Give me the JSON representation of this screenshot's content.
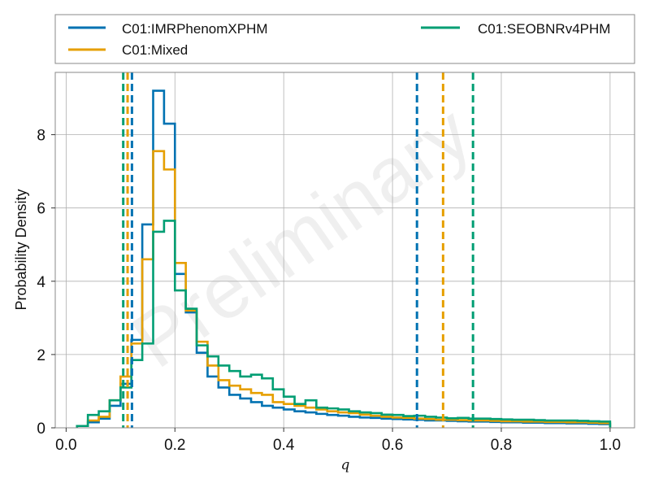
{
  "chart_data": {
    "type": "line",
    "title": "",
    "xlabel": "q",
    "ylabel": "Probability Density",
    "xlim": [
      -0.02,
      1.045
    ],
    "ylim": [
      0,
      9.7
    ],
    "xticks": [
      0.0,
      0.2,
      0.4,
      0.6,
      0.8,
      1.0
    ],
    "xtick_labels": [
      "0.0",
      "0.2",
      "0.4",
      "0.6",
      "0.8",
      "1.0"
    ],
    "yticks": [
      0,
      2,
      4,
      6,
      8
    ],
    "ytick_labels": [
      "0",
      "2",
      "4",
      "6",
      "8"
    ],
    "grid": true,
    "legend_position": "top, above plot",
    "watermark": "Preliminary",
    "bin_edges": [
      0.02,
      0.04,
      0.06,
      0.08,
      0.1,
      0.12,
      0.14,
      0.16,
      0.18,
      0.2,
      0.22,
      0.24,
      0.26,
      0.28,
      0.3,
      0.32,
      0.34,
      0.36,
      0.38,
      0.4,
      0.42,
      0.44,
      0.46,
      0.48,
      0.5,
      0.52,
      0.54,
      0.56,
      0.58,
      0.6,
      0.62,
      0.64,
      0.66,
      0.68,
      0.7,
      0.72,
      0.74,
      0.76,
      0.78,
      0.8,
      0.82,
      0.84,
      0.86,
      0.88,
      0.9,
      0.92,
      0.94,
      0.96,
      0.98,
      1.0
    ],
    "series": [
      {
        "name": "C01:IMRPhenomXPHM",
        "color": "#0072b2",
        "values": [
          0.05,
          0.15,
          0.25,
          0.6,
          1.2,
          2.4,
          5.55,
          9.2,
          8.3,
          4.2,
          3.15,
          2.05,
          1.4,
          1.1,
          0.9,
          0.8,
          0.7,
          0.6,
          0.55,
          0.5,
          0.45,
          0.42,
          0.38,
          0.35,
          0.33,
          0.3,
          0.28,
          0.27,
          0.25,
          0.24,
          0.23,
          0.22,
          0.2,
          0.2,
          0.19,
          0.18,
          0.17,
          0.17,
          0.16,
          0.15,
          0.15,
          0.14,
          0.14,
          0.13,
          0.13,
          0.12,
          0.12,
          0.11,
          0.1
        ],
        "vlines": [
          0.121,
          0.645
        ]
      },
      {
        "name": "C01:Mixed",
        "color": "#e69f00",
        "values": [
          0.05,
          0.2,
          0.3,
          0.75,
          1.4,
          2.3,
          4.6,
          7.55,
          7.05,
          4.5,
          3.2,
          2.35,
          1.7,
          1.3,
          1.15,
          1.05,
          0.95,
          0.9,
          0.7,
          0.65,
          0.6,
          0.55,
          0.5,
          0.45,
          0.42,
          0.4,
          0.36,
          0.33,
          0.3,
          0.28,
          0.27,
          0.25,
          0.24,
          0.22,
          0.22,
          0.21,
          0.2,
          0.2,
          0.19,
          0.18,
          0.18,
          0.17,
          0.17,
          0.16,
          0.16,
          0.15,
          0.15,
          0.14,
          0.13
        ],
        "vlines": [
          0.113,
          0.693
        ]
      },
      {
        "name": "C01:SEOBNRv4PHM",
        "color": "#009e73",
        "values": [
          0.05,
          0.35,
          0.45,
          0.75,
          1.1,
          1.85,
          2.3,
          5.35,
          5.65,
          3.75,
          3.25,
          2.25,
          1.95,
          1.7,
          1.55,
          1.4,
          1.45,
          1.35,
          1.05,
          0.85,
          0.65,
          0.75,
          0.55,
          0.53,
          0.5,
          0.45,
          0.42,
          0.4,
          0.36,
          0.35,
          0.32,
          0.33,
          0.3,
          0.28,
          0.26,
          0.27,
          0.25,
          0.25,
          0.24,
          0.23,
          0.22,
          0.22,
          0.21,
          0.2,
          0.2,
          0.2,
          0.19,
          0.18,
          0.17
        ],
        "vlines": [
          0.105,
          0.748
        ]
      }
    ]
  }
}
